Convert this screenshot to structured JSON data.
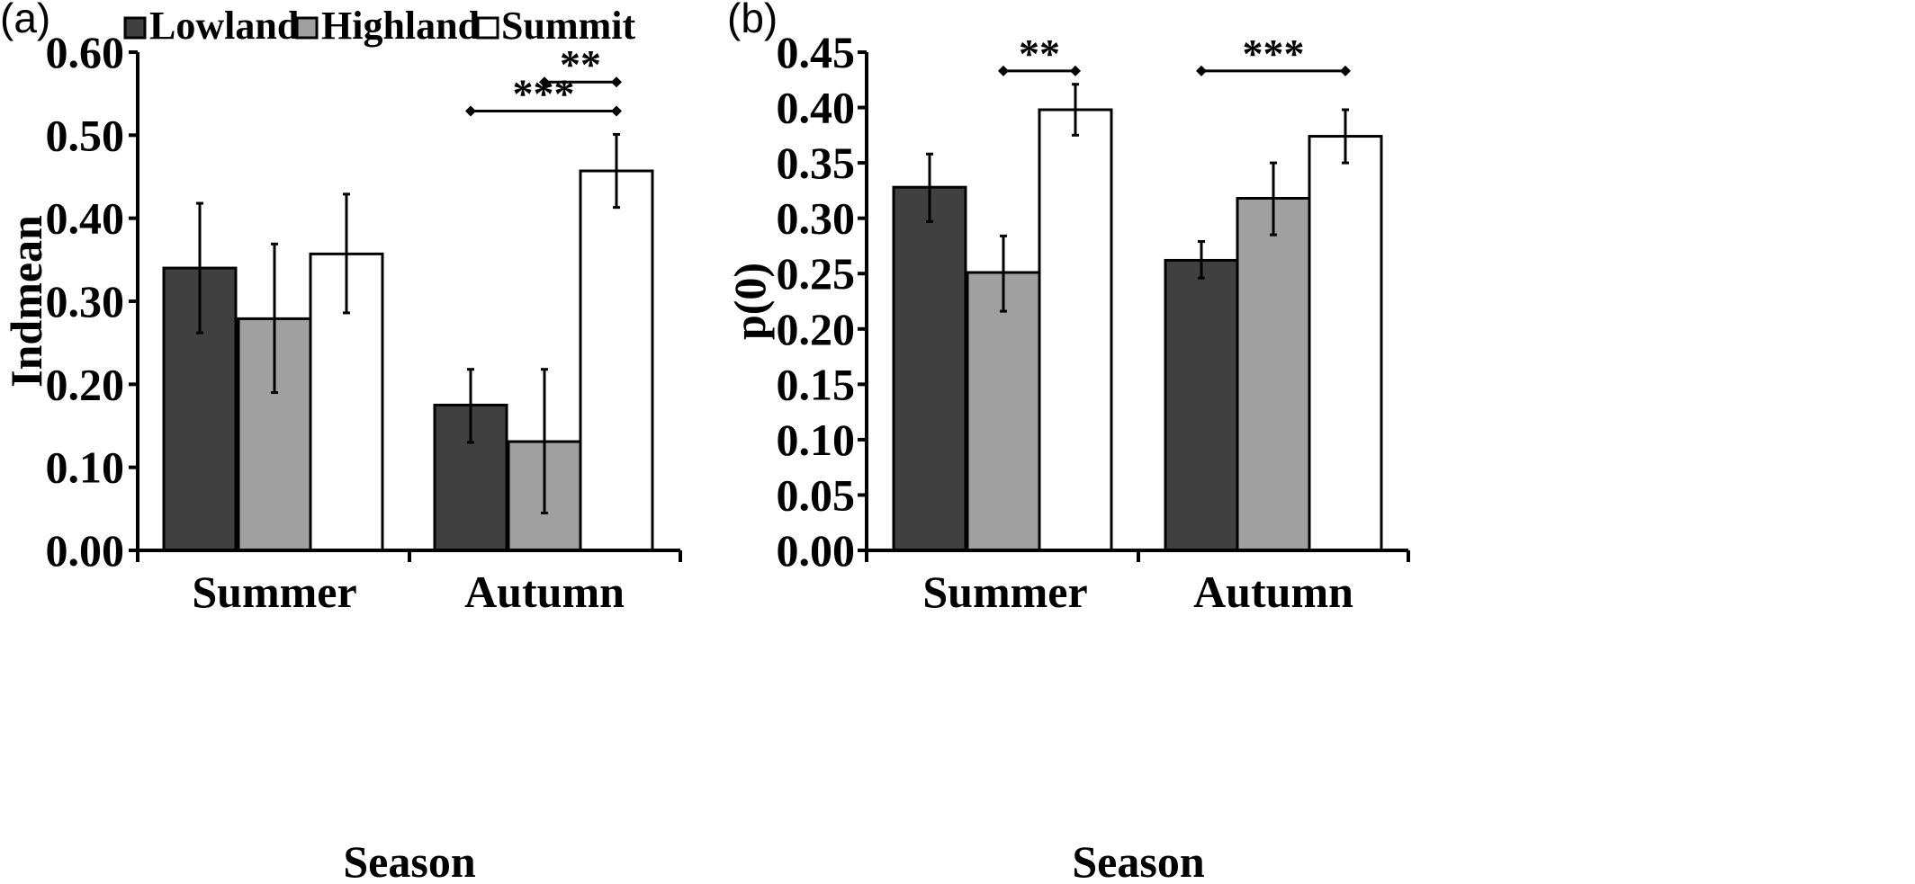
{
  "legend": [
    {
      "name": "Lowland",
      "color": "#404040"
    },
    {
      "name": "Highland",
      "color": "#a0a0a0"
    },
    {
      "name": "Summit",
      "color": "#ffffff"
    }
  ],
  "chart_data": [
    {
      "panel": "(a)",
      "type": "bar",
      "xlabel": "Season",
      "ylabel": "Indmean",
      "ylim": [
        0,
        0.6
      ],
      "yticks": [
        "0.00",
        "0.10",
        "0.20",
        "0.30",
        "0.40",
        "0.50",
        "0.60"
      ],
      "categories": [
        "Summer",
        "Autumn"
      ],
      "series": [
        {
          "name": "Lowland",
          "values": [
            0.34,
            0.175
          ],
          "error_low": [
            0.262,
            0.13
          ],
          "error_high": [
            0.418,
            0.218
          ]
        },
        {
          "name": "Highland",
          "values": [
            0.279,
            0.131
          ],
          "error_low": [
            0.19,
            0.045
          ],
          "error_high": [
            0.369,
            0.218
          ]
        },
        {
          "name": "Summit",
          "values": [
            0.357,
            0.457
          ],
          "error_low": [
            0.286,
            0.413
          ],
          "error_high": [
            0.429,
            0.501
          ]
        }
      ],
      "significance": [
        {
          "category": "Autumn",
          "from": "Highland",
          "to": "Summit",
          "label": "**",
          "y": 0.564
        },
        {
          "category": "Autumn",
          "from": "Lowland",
          "to": "Summit",
          "label": "***",
          "y": 0.529
        }
      ]
    },
    {
      "panel": "(b)",
      "type": "bar",
      "xlabel": "Season",
      "ylabel": "p(0)",
      "ylim": [
        0,
        0.45
      ],
      "yticks": [
        "0.00",
        "0.05",
        "0.10",
        "0.15",
        "0.20",
        "0.25",
        "0.30",
        "0.35",
        "0.40",
        "0.45"
      ],
      "categories": [
        "Summer",
        "Autumn"
      ],
      "series": [
        {
          "name": "Lowland",
          "values": [
            0.328,
            0.262
          ],
          "error_low": [
            0.297,
            0.246
          ],
          "error_high": [
            0.358,
            0.279
          ]
        },
        {
          "name": "Highland",
          "values": [
            0.251,
            0.318
          ],
          "error_low": [
            0.216,
            0.285
          ],
          "error_high": [
            0.284,
            0.35
          ]
        },
        {
          "name": "Summit",
          "values": [
            0.398,
            0.374
          ],
          "error_low": [
            0.375,
            0.35
          ],
          "error_high": [
            0.421,
            0.398
          ]
        }
      ],
      "significance": [
        {
          "category": "Summer",
          "from": "Highland",
          "to": "Summit",
          "label": "**",
          "y": 0.433
        },
        {
          "category": "Autumn",
          "from": "Lowland",
          "to": "Summit",
          "label": "***",
          "y": 0.433
        }
      ]
    }
  ]
}
